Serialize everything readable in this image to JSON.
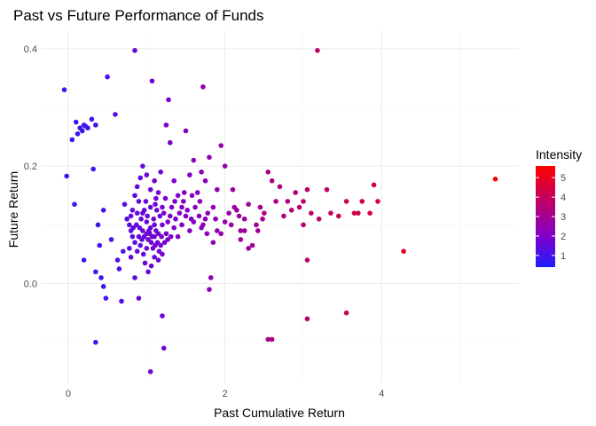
{
  "chart_data": {
    "type": "scatter",
    "title": "Past vs Future Performance of Funds",
    "xlabel": "Past Cumulative Return",
    "ylabel": "Future Return",
    "xlim": [
      -0.35,
      5.75
    ],
    "ylim": [
      -0.17,
      0.43
    ],
    "x_ticks": [
      {
        "v": 0,
        "label": "0"
      },
      {
        "v": 2,
        "label": "2"
      },
      {
        "v": 4,
        "label": "4"
      }
    ],
    "x_minor": [
      1,
      3,
      5
    ],
    "y_ticks": [
      {
        "v": 0.0,
        "label": "0.0"
      },
      {
        "v": 0.2,
        "label": "0.2"
      },
      {
        "v": 0.4,
        "label": "0.4"
      }
    ],
    "y_minor": [
      -0.1,
      0.1,
      0.3
    ],
    "grid": true,
    "legend": {
      "title": "Intensity",
      "position": "right",
      "min": 0.4,
      "max": 5.6,
      "ticks": [
        {
          "v": 1,
          "label": "1"
        },
        {
          "v": 2,
          "label": "2"
        },
        {
          "v": 3,
          "label": "3"
        },
        {
          "v": 4,
          "label": "4"
        },
        {
          "v": 5,
          "label": "5"
        }
      ],
      "color_low": "#1f1fff",
      "color_mid": "#7f00cc",
      "color_high": "#ff0000"
    },
    "points": [
      [
        -0.05,
        0.33
      ],
      [
        -0.02,
        0.183
      ],
      [
        0.05,
        0.245
      ],
      [
        0.1,
        0.275
      ],
      [
        0.12,
        0.255
      ],
      [
        0.15,
        0.265
      ],
      [
        0.18,
        0.26
      ],
      [
        0.2,
        0.27
      ],
      [
        0.22,
        0.268
      ],
      [
        0.25,
        0.265
      ],
      [
        0.3,
        0.28
      ],
      [
        0.35,
        0.27
      ],
      [
        0.08,
        0.135
      ],
      [
        0.2,
        0.04
      ],
      [
        0.32,
        0.195
      ],
      [
        0.5,
        0.352
      ],
      [
        0.6,
        0.288
      ],
      [
        0.85,
        0.397
      ],
      [
        1.07,
        0.345
      ],
      [
        1.28,
        0.313
      ],
      [
        1.72,
        0.335
      ],
      [
        3.18,
        0.397
      ],
      [
        0.45,
        0.125
      ],
      [
        0.55,
        0.075
      ],
      [
        0.38,
        0.1
      ],
      [
        0.4,
        0.065
      ],
      [
        0.42,
        0.01
      ],
      [
        0.45,
        -0.005
      ],
      [
        0.48,
        -0.025
      ],
      [
        0.35,
        0.02
      ],
      [
        0.63,
        0.04
      ],
      [
        0.65,
        0.025
      ],
      [
        0.68,
        -0.03
      ],
      [
        0.7,
        0.055
      ],
      [
        0.75,
        0.11
      ],
      [
        0.8,
        0.09
      ],
      [
        0.82,
        0.125
      ],
      [
        0.85,
        0.15
      ],
      [
        0.88,
        0.165
      ],
      [
        0.9,
        0.14
      ],
      [
        0.78,
        0.06
      ],
      [
        0.8,
        0.045
      ],
      [
        0.85,
        0.01
      ],
      [
        0.9,
        -0.025
      ],
      [
        0.95,
        0.2
      ],
      [
        0.92,
        0.18
      ],
      [
        0.95,
        0.12
      ],
      [
        1.0,
        0.185
      ],
      [
        1.05,
        0.16
      ],
      [
        1.1,
        0.175
      ],
      [
        1.12,
        0.145
      ],
      [
        1.15,
        0.155
      ],
      [
        1.18,
        0.19
      ],
      [
        1.2,
        0.13
      ],
      [
        1.25,
        0.27
      ],
      [
        1.3,
        0.24
      ],
      [
        1.35,
        0.175
      ],
      [
        1.4,
        0.15
      ],
      [
        1.45,
        0.13
      ],
      [
        1.5,
        0.26
      ],
      [
        1.55,
        0.185
      ],
      [
        1.6,
        0.21
      ],
      [
        1.65,
        0.155
      ],
      [
        1.7,
        0.19
      ],
      [
        1.75,
        0.175
      ],
      [
        1.8,
        0.215
      ],
      [
        1.85,
        0.13
      ],
      [
        1.9,
        0.16
      ],
      [
        1.95,
        0.235
      ],
      [
        2.0,
        0.2
      ],
      [
        2.05,
        0.12
      ],
      [
        2.1,
        0.16
      ],
      [
        2.15,
        0.125
      ],
      [
        2.2,
        0.09
      ],
      [
        2.25,
        0.11
      ],
      [
        2.3,
        0.135
      ],
      [
        2.35,
        0.065
      ],
      [
        2.4,
        0.1
      ],
      [
        2.45,
        0.13
      ],
      [
        2.5,
        0.12
      ],
      [
        2.55,
        0.19
      ],
      [
        2.6,
        0.175
      ],
      [
        2.65,
        0.14
      ],
      [
        2.7,
        0.165
      ],
      [
        2.75,
        0.115
      ],
      [
        2.8,
        0.14
      ],
      [
        2.85,
        0.125
      ],
      [
        2.9,
        0.155
      ],
      [
        2.95,
        0.13
      ],
      [
        3.0,
        0.14
      ],
      [
        3.05,
        0.16
      ],
      [
        3.1,
        0.12
      ],
      [
        3.2,
        0.11
      ],
      [
        3.3,
        0.16
      ],
      [
        3.35,
        0.12
      ],
      [
        3.45,
        0.115
      ],
      [
        3.55,
        0.14
      ],
      [
        3.65,
        0.12
      ],
      [
        3.75,
        0.14
      ],
      [
        3.85,
        0.12
      ],
      [
        3.9,
        0.168
      ],
      [
        3.95,
        0.14
      ],
      [
        3.7,
        0.12
      ],
      [
        3.0,
        0.1
      ],
      [
        3.05,
        0.04
      ],
      [
        3.05,
        -0.06
      ],
      [
        3.55,
        -0.05
      ],
      [
        4.28,
        0.055
      ],
      [
        5.45,
        0.178
      ],
      [
        2.55,
        -0.095
      ],
      [
        2.6,
        -0.095
      ],
      [
        1.05,
        -0.15
      ],
      [
        1.2,
        -0.055
      ],
      [
        1.22,
        -0.11
      ],
      [
        0.35,
        -0.1
      ],
      [
        1.8,
        -0.01
      ],
      [
        1.82,
        0.01
      ],
      [
        2.2,
        0.075
      ],
      [
        2.25,
        0.09
      ],
      [
        2.3,
        0.06
      ],
      [
        1.85,
        0.07
      ],
      [
        1.9,
        0.09
      ],
      [
        1.95,
        0.085
      ],
      [
        2.0,
        0.105
      ],
      [
        1.7,
        0.095
      ],
      [
        1.75,
        0.11
      ],
      [
        1.78,
        0.12
      ],
      [
        1.6,
        0.105
      ],
      [
        1.55,
        0.09
      ],
      [
        1.5,
        0.115
      ],
      [
        1.45,
        0.1
      ],
      [
        1.4,
        0.08
      ],
      [
        1.35,
        0.095
      ],
      [
        1.3,
        0.115
      ],
      [
        1.25,
        0.085
      ],
      [
        1.2,
        0.1
      ],
      [
        1.1,
        0.1
      ],
      [
        1.05,
        0.095
      ],
      [
        1.0,
        0.105
      ],
      [
        0.95,
        0.09
      ],
      [
        0.9,
        0.08
      ],
      [
        0.85,
        0.07
      ],
      [
        0.82,
        0.08
      ],
      [
        0.88,
        0.055
      ],
      [
        0.92,
        0.065
      ],
      [
        0.96,
        0.05
      ],
      [
        1.0,
        0.06
      ],
      [
        1.02,
        0.075
      ],
      [
        1.04,
        0.085
      ],
      [
        1.06,
        0.07
      ],
      [
        1.08,
        0.06
      ],
      [
        1.1,
        0.08
      ],
      [
        1.12,
        0.09
      ],
      [
        1.14,
        0.07
      ],
      [
        1.16,
        0.055
      ],
      [
        1.18,
        0.065
      ],
      [
        0.98,
        0.035
      ],
      [
        1.02,
        0.02
      ],
      [
        1.06,
        0.03
      ],
      [
        1.1,
        0.045
      ],
      [
        1.15,
        0.04
      ],
      [
        1.2,
        0.05
      ],
      [
        0.93,
        0.11
      ],
      [
        0.97,
        0.125
      ],
      [
        1.01,
        0.115
      ],
      [
        1.05,
        0.13
      ],
      [
        1.09,
        0.11
      ],
      [
        1.13,
        0.125
      ],
      [
        1.17,
        0.115
      ],
      [
        1.22,
        0.12
      ],
      [
        1.27,
        0.105
      ],
      [
        1.32,
        0.13
      ],
      [
        1.37,
        0.11
      ],
      [
        1.42,
        0.12
      ],
      [
        1.47,
        0.14
      ],
      [
        1.52,
        0.125
      ],
      [
        1.57,
        0.11
      ],
      [
        1.62,
        0.13
      ],
      [
        1.67,
        0.115
      ],
      [
        1.72,
        0.1
      ],
      [
        1.77,
        0.085
      ],
      [
        0.78,
        0.1
      ],
      [
        0.8,
        0.115
      ],
      [
        0.83,
        0.095
      ],
      [
        0.87,
        0.1
      ],
      [
        0.91,
        0.095
      ],
      [
        0.94,
        0.075
      ],
      [
        0.97,
        0.08
      ],
      [
        1.0,
        0.085
      ],
      [
        1.03,
        0.09
      ],
      [
        1.07,
        0.08
      ],
      [
        1.11,
        0.065
      ],
      [
        1.15,
        0.085
      ],
      [
        1.19,
        0.08
      ],
      [
        1.23,
        0.07
      ],
      [
        1.27,
        0.075
      ],
      [
        1.31,
        0.08
      ],
      [
        0.72,
        0.135
      ],
      [
        0.88,
        0.12
      ],
      [
        0.99,
        0.14
      ],
      [
        1.11,
        0.135
      ],
      [
        1.24,
        0.145
      ],
      [
        1.36,
        0.14
      ],
      [
        1.48,
        0.155
      ],
      [
        1.58,
        0.15
      ],
      [
        1.68,
        0.14
      ],
      [
        1.88,
        0.11
      ],
      [
        2.08,
        0.1
      ],
      [
        2.12,
        0.13
      ],
      [
        2.18,
        0.115
      ],
      [
        2.42,
        0.09
      ],
      [
        2.48,
        0.11
      ]
    ]
  }
}
